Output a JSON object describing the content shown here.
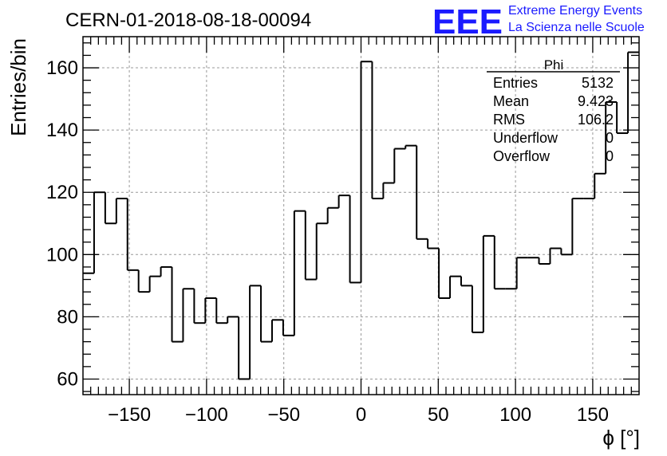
{
  "chart_data": {
    "type": "histogram",
    "title": "CERN-01-2018-08-18-00094",
    "xlabel": "ϕ [°]",
    "ylabel": "Entries/bin",
    "xlim": [
      -180,
      180
    ],
    "ylim": [
      55,
      170
    ],
    "grid": true,
    "x_ticks": [
      -150,
      -100,
      -50,
      0,
      50,
      100,
      150
    ],
    "x_tick_labels": [
      "−150",
      "−100",
      "−50",
      "0",
      "50",
      "100",
      "150"
    ],
    "y_ticks": [
      60,
      80,
      100,
      120,
      140,
      160
    ],
    "y_tick_labels": [
      "60",
      "80",
      "100",
      "120",
      "140",
      "160"
    ],
    "bin_width": 7.2,
    "values": [
      94,
      120,
      110,
      118,
      95,
      88,
      93,
      96,
      72,
      89,
      78,
      86,
      78,
      80,
      60,
      90,
      72,
      79,
      74,
      114,
      92,
      110,
      115,
      119,
      91,
      162,
      118,
      123,
      134,
      135,
      105,
      102,
      86,
      93,
      90,
      75,
      106,
      89,
      89,
      99,
      99,
      97,
      102,
      100,
      118,
      118,
      126,
      149,
      139,
      165
    ],
    "stats_box": {
      "title": "Phi",
      "rows": [
        {
          "label": "Entries",
          "value": "5132"
        },
        {
          "label": "Mean",
          "value": "9.423"
        },
        {
          "label": "RMS",
          "value": "106.2"
        },
        {
          "label": "Underflow",
          "value": "0"
        },
        {
          "label": "Overflow",
          "value": "0"
        }
      ]
    }
  },
  "logo": {
    "mark": "EEE",
    "line1": "Extreme Energy Events",
    "line2": "La Scienza nelle Scuole"
  },
  "colors": {
    "logo": "#1a1aff",
    "line": "#000000",
    "grid": "#999999"
  }
}
